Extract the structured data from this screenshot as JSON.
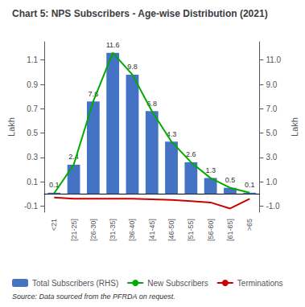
{
  "chart_data": {
    "type": "bar",
    "title": "Chart 5: NPS Subscribers - Age-wise Distribution (2021)",
    "source": "Source: Data sourced from the PFRDA on request.",
    "categories": [
      "<21",
      "[21-25]",
      "[26-30]",
      "[31-35]",
      "[36-40]",
      "[41-45]",
      "[46-50]",
      "[51-55]",
      "[56-60]",
      "[61-65]",
      ">65"
    ],
    "series": [
      {
        "name": "Total Subscribers (RHS)",
        "type": "bar",
        "color": "#4472C4",
        "axis": "y2",
        "data_labels": true,
        "values": [
          0.1,
          2.4,
          7.6,
          11.6,
          9.8,
          6.8,
          4.3,
          2.6,
          1.3,
          0.5,
          0.1
        ]
      },
      {
        "name": "New Subscribers",
        "type": "line",
        "color": "#00AA00",
        "axis": "y2",
        "values": [
          0.05,
          2.4,
          7.6,
          11.6,
          9.8,
          6.8,
          4.3,
          2.6,
          1.3,
          0.5,
          0.1
        ]
      },
      {
        "name": "Terminations",
        "type": "line",
        "color": "#CC0000",
        "values": [
          -0.03,
          -0.04,
          -0.04,
          -0.04,
          -0.04,
          -0.045,
          -0.05,
          -0.06,
          -0.07,
          -0.12,
          -0.04
        ]
      }
    ],
    "ylabel": "Lakh",
    "y2label": "Lakh",
    "ylim": [
      -0.15,
      1.25
    ],
    "yticks": [
      -0.1,
      0.1,
      0.3,
      0.5,
      0.7,
      0.9,
      1.1
    ],
    "y2lim": [
      -1.5,
      12.5
    ],
    "y2ticks": [
      {
        "value": -1.0,
        "label": "-1.0"
      },
      {
        "value": 1.0,
        "label": "1.0"
      },
      {
        "value": 3.0,
        "label": "3.0"
      },
      {
        "value": 5.0,
        "label": "5.0"
      },
      {
        "value": 7.0,
        "label": "7.0"
      },
      {
        "value": 9.0,
        "label": "9.0"
      },
      {
        "value": 11.0,
        "label": "11.0"
      }
    ],
    "grid": false,
    "legend": "bottom"
  }
}
